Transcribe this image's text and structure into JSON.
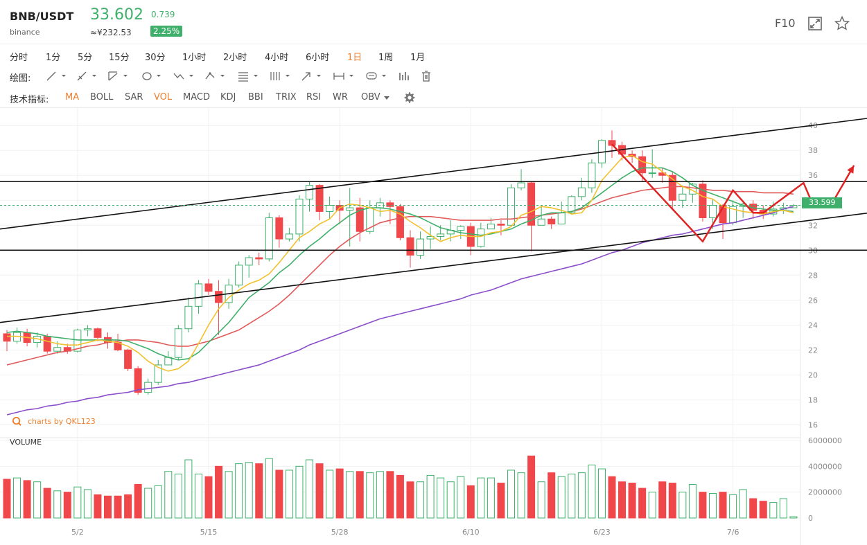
{
  "header": {
    "pair": "BNB/USDT",
    "exchange": "binance",
    "price": "33.602",
    "cny_price": "≈¥232.53",
    "change": "0.739",
    "change_pct": "2.25%",
    "f10_label": "F10",
    "icons": [
      "expand-icon",
      "star-icon"
    ]
  },
  "periods": {
    "items": [
      "分时",
      "1分",
      "5分",
      "15分",
      "30分",
      "1小时",
      "2小时",
      "4小时",
      "6小时",
      "1日",
      "1周",
      "1月"
    ],
    "active": "1日"
  },
  "drawing": {
    "label": "绘图:",
    "tools": [
      "line-tool-icon",
      "ray-tool-icon",
      "channel-tool-icon",
      "shape-tool-icon",
      "pattern-tool-icon",
      "fibonacci-tool-icon",
      "gann-tool-icon",
      "arrow-tool-icon",
      "measure-tool-icon",
      "text-tool-icon",
      "bars-pattern-icon",
      "trash-icon"
    ]
  },
  "indicators": {
    "label": "技术指标:",
    "items": [
      "MA",
      "BOLL",
      "SAR",
      "VOL",
      "MACD",
      "KDJ",
      "BBI",
      "TRIX",
      "RSI",
      "WR",
      "OBV"
    ],
    "active": [
      "MA",
      "VOL"
    ]
  },
  "watermark": "charts by QKL123",
  "volume_label": "VOLUME",
  "last_price_tag": "33.599",
  "colors": {
    "up": "#3fb06b",
    "down": "#f0474b",
    "ma5": "#f2c12e",
    "ma10": "#3fb06b",
    "ma20": "#e05a5a",
    "ma60": "#8a4ecb",
    "accent": "#f07f2d"
  },
  "chart_data": {
    "type": "candlestick",
    "price_axis": {
      "ylim": [
        15.3,
        41.4
      ],
      "ticks": [
        40,
        38,
        36,
        34,
        32,
        30,
        28,
        26,
        24,
        22,
        20,
        18,
        16
      ]
    },
    "volume_axis": {
      "ylim": [
        0,
        6000000
      ],
      "ticks": [
        "6000000",
        "4000000",
        "2000000",
        "0"
      ]
    },
    "x_labels": [
      "5/2",
      "5/15",
      "5/28",
      "6/10",
      "6/23",
      "7/6"
    ],
    "candles": [
      [
        23.3,
        22.7,
        23.6,
        21.9
      ],
      [
        22.7,
        23.4,
        23.8,
        22.5
      ],
      [
        23.4,
        22.6,
        23.7,
        22.3
      ],
      [
        22.6,
        23.1,
        23.4,
        22.2
      ],
      [
        23.1,
        21.9,
        23.3,
        21.7
      ],
      [
        21.9,
        22.2,
        22.7,
        21.7
      ],
      [
        22.2,
        21.9,
        22.5,
        21.7
      ],
      [
        21.9,
        23.6,
        23.7,
        21.8
      ],
      [
        23.6,
        23.7,
        24.0,
        23.1
      ],
      [
        23.7,
        23.0,
        23.8,
        22.7
      ],
      [
        23.0,
        22.6,
        23.4,
        22.1
      ],
      [
        22.6,
        22.0,
        23.3,
        21.9
      ],
      [
        22.0,
        20.5,
        22.1,
        20.3
      ],
      [
        20.5,
        18.6,
        20.7,
        18.4
      ],
      [
        18.6,
        19.4,
        19.7,
        18.4
      ],
      [
        19.4,
        20.8,
        21.2,
        19.2
      ],
      [
        20.8,
        21.4,
        21.9,
        20.8
      ],
      [
        21.4,
        23.7,
        24.0,
        21.2
      ],
      [
        23.7,
        25.5,
        26.2,
        23.4
      ],
      [
        25.5,
        27.3,
        27.6,
        24.9
      ],
      [
        27.3,
        26.7,
        27.7,
        26.4
      ],
      [
        26.7,
        25.8,
        27.6,
        23.2
      ],
      [
        25.8,
        27.2,
        27.7,
        25.3
      ],
      [
        27.2,
        28.8,
        29.1,
        27.0
      ],
      [
        28.8,
        29.4,
        29.6,
        27.8
      ],
      [
        29.4,
        29.3,
        29.8,
        28.8
      ],
      [
        29.3,
        32.6,
        33.0,
        29.1
      ],
      [
        32.6,
        30.9,
        32.8,
        30.2
      ],
      [
        30.9,
        31.3,
        31.8,
        30.7
      ],
      [
        31.3,
        34.1,
        34.4,
        30.7
      ],
      [
        34.1,
        35.2,
        35.5,
        33.1
      ],
      [
        35.2,
        33.1,
        35.3,
        32.4
      ],
      [
        33.1,
        33.6,
        34.3,
        32.5
      ],
      [
        33.6,
        33.2,
        34.0,
        32.1
      ],
      [
        33.2,
        33.4,
        35.0,
        30.3
      ],
      [
        33.4,
        31.5,
        34.2,
        30.7
      ],
      [
        31.5,
        33.4,
        34.0,
        31.3
      ],
      [
        33.4,
        33.8,
        34.2,
        32.7
      ],
      [
        33.8,
        33.5,
        34.0,
        32.1
      ],
      [
        33.5,
        31.0,
        33.7,
        30.8
      ],
      [
        31.0,
        29.6,
        31.6,
        28.6
      ],
      [
        29.6,
        30.9,
        31.5,
        29.3
      ],
      [
        30.9,
        31.1,
        31.9,
        30.1
      ],
      [
        31.1,
        31.3,
        32.0,
        30.8
      ],
      [
        31.3,
        31.6,
        32.4,
        30.7
      ],
      [
        31.6,
        31.9,
        32.0,
        30.9
      ],
      [
        31.9,
        30.3,
        32.2,
        29.6
      ],
      [
        30.3,
        31.7,
        32.2,
        30.2
      ],
      [
        31.7,
        32.1,
        32.6,
        31.8
      ],
      [
        32.1,
        32.0,
        32.4,
        31.2
      ],
      [
        32.0,
        35.0,
        35.3,
        31.9
      ],
      [
        35.0,
        35.4,
        36.5,
        34.8
      ],
      [
        35.4,
        32.0,
        35.5,
        29.9
      ],
      [
        32.0,
        32.5,
        33.6,
        32.1
      ],
      [
        32.5,
        32.1,
        32.7,
        31.7
      ],
      [
        32.1,
        33.0,
        33.9,
        32.4
      ],
      [
        33.0,
        34.3,
        34.4,
        32.9
      ],
      [
        34.3,
        35.0,
        35.8,
        34.0
      ],
      [
        35.0,
        37.0,
        37.3,
        34.6
      ],
      [
        37.0,
        38.8,
        38.9,
        36.6
      ],
      [
        38.8,
        38.4,
        39.6,
        37.4
      ],
      [
        38.4,
        37.7,
        38.7,
        37.2
      ],
      [
        37.7,
        37.5,
        38.0,
        37.0
      ],
      [
        37.5,
        36.2,
        38.0,
        35.5
      ],
      [
        36.2,
        36.2,
        38.1,
        35.8
      ],
      [
        36.2,
        36.0,
        36.6,
        35.4
      ],
      [
        36.0,
        34.0,
        36.3,
        33.2
      ],
      [
        34.0,
        34.5,
        35.2,
        33.4
      ],
      [
        34.5,
        35.3,
        35.4,
        33.8
      ],
      [
        35.3,
        32.6,
        35.6,
        32.3
      ],
      [
        32.6,
        33.6,
        34.1,
        31.7
      ],
      [
        33.6,
        32.2,
        33.7,
        30.9
      ],
      [
        32.2,
        33.5,
        34.0,
        32.0
      ],
      [
        33.5,
        33.7,
        33.9,
        32.6
      ],
      [
        33.7,
        33.2,
        34.0,
        32.5
      ],
      [
        33.2,
        32.9,
        33.6,
        32.5
      ],
      [
        32.9,
        33.3,
        33.9,
        32.7
      ],
      [
        33.3,
        33.4,
        33.8,
        32.9
      ],
      [
        33.4,
        33.6,
        33.7,
        33.4
      ]
    ],
    "volumes": [
      3.0,
      3.1,
      2.9,
      2.8,
      2.3,
      2.1,
      2.0,
      2.4,
      2.2,
      1.8,
      1.7,
      1.7,
      1.8,
      2.6,
      2.3,
      2.5,
      3.6,
      3.4,
      4.5,
      3.4,
      3.2,
      4.0,
      3.6,
      4.2,
      4.3,
      4.2,
      4.6,
      3.7,
      3.7,
      4.0,
      4.5,
      4.2,
      3.7,
      3.8,
      3.6,
      3.6,
      3.5,
      3.6,
      3.6,
      3.3,
      2.8,
      2.8,
      3.3,
      3.1,
      2.8,
      3.2,
      2.5,
      3.1,
      3.1,
      2.7,
      3.7,
      3.5,
      4.8,
      2.8,
      3.5,
      3.2,
      3.4,
      3.5,
      4.1,
      3.8,
      3.2,
      2.8,
      2.7,
      2.3,
      2.0,
      2.8,
      2.7,
      2.0,
      2.6,
      2.0,
      1.9,
      2.0,
      1.8,
      2.2,
      1.5,
      1.3,
      1.2,
      1.5,
      0.1
    ],
    "volume_scale": 1000000,
    "ma5": [
      23.1,
      23.1,
      23.0,
      22.9,
      22.7,
      22.5,
      22.4,
      22.4,
      22.6,
      22.8,
      22.7,
      22.6,
      22.3,
      21.8,
      21.1,
      20.6,
      20.3,
      20.5,
      21.1,
      22.5,
      24.0,
      25.3,
      26.2,
      26.8,
      27.3,
      27.6,
      28.1,
      29.0,
      30.0,
      31.0,
      31.5,
      32.1,
      32.5,
      33.4,
      33.7,
      33.6,
      33.4,
      33.1,
      33.2,
      32.9,
      32.3,
      31.8,
      31.2,
      30.7,
      31.0,
      31.2,
      31.1,
      31.1,
      31.4,
      31.5,
      31.9,
      32.8,
      33.1,
      33.5,
      33.4,
      33.2,
      32.9,
      33.0,
      34.0,
      35.6,
      36.5,
      37.4,
      37.6,
      37.1,
      36.9,
      36.3,
      35.7,
      35.1,
      34.8,
      34.3,
      34.1,
      33.5,
      33.3,
      33.1,
      33.0,
      32.9,
      33.1,
      33.2,
      33.0
    ],
    "ma10": [
      23.4,
      23.5,
      23.4,
      23.3,
      23.1,
      23.0,
      22.9,
      22.8,
      22.8,
      22.8,
      22.8,
      22.8,
      22.7,
      22.4,
      22.1,
      21.7,
      21.4,
      21.2,
      21.3,
      21.8,
      22.6,
      23.4,
      24.2,
      25.2,
      26.2,
      26.8,
      27.4,
      28.2,
      28.8,
      29.6,
      30.3,
      30.9,
      31.6,
      32.2,
      32.8,
      33.2,
      33.4,
      33.4,
      33.3,
      33.1,
      32.9,
      32.6,
      32.2,
      31.8,
      31.6,
      31.4,
      31.3,
      31.2,
      31.3,
      31.5,
      31.7,
      32.1,
      32.4,
      32.8,
      33.0,
      33.0,
      33.1,
      33.4,
      34.0,
      34.6,
      35.2,
      35.8,
      36.3,
      36.6,
      36.6,
      36.6,
      36.3,
      35.8,
      35.2,
      34.8,
      34.5,
      34.2,
      33.9,
      33.6,
      33.4,
      33.3,
      33.2,
      33.2,
      33.1
    ],
    "ma20": [
      20.8,
      21.0,
      21.2,
      21.4,
      21.6,
      21.8,
      21.9,
      22.1,
      22.3,
      22.4,
      22.6,
      22.7,
      22.8,
      22.8,
      22.7,
      22.6,
      22.4,
      22.3,
      22.3,
      22.5,
      22.7,
      23.0,
      23.3,
      23.6,
      24.1,
      24.6,
      25.1,
      25.7,
      26.4,
      27.2,
      28.0,
      28.8,
      29.6,
      30.3,
      30.9,
      31.4,
      31.8,
      32.2,
      32.4,
      32.6,
      32.7,
      32.7,
      32.7,
      32.6,
      32.5,
      32.4,
      32.4,
      32.4,
      32.4,
      32.5,
      32.5,
      32.6,
      32.7,
      32.8,
      32.9,
      33.0,
      33.1,
      33.3,
      33.6,
      33.9,
      34.2,
      34.4,
      34.6,
      34.8,
      34.9,
      35.0,
      35.1,
      35.1,
      35.0,
      34.9,
      34.8,
      34.8,
      34.7,
      34.7,
      34.7,
      34.6,
      34.6,
      34.6,
      34.5
    ],
    "ma60": [
      16.8,
      17.0,
      17.2,
      17.3,
      17.5,
      17.6,
      17.8,
      17.9,
      18.1,
      18.2,
      18.4,
      18.5,
      18.6,
      18.8,
      18.9,
      19.0,
      19.1,
      19.3,
      19.4,
      19.6,
      19.8,
      20.0,
      20.2,
      20.4,
      20.6,
      20.8,
      21.1,
      21.4,
      21.7,
      22.0,
      22.4,
      22.7,
      23.0,
      23.3,
      23.6,
      23.9,
      24.2,
      24.5,
      24.7,
      24.9,
      25.1,
      25.3,
      25.5,
      25.7,
      25.9,
      26.1,
      26.4,
      26.6,
      26.8,
      27.1,
      27.4,
      27.7,
      27.9,
      28.1,
      28.3,
      28.5,
      28.7,
      28.9,
      29.2,
      29.5,
      29.8,
      30.0,
      30.3,
      30.6,
      30.8,
      31.0,
      31.2,
      31.3,
      31.5,
      31.7,
      31.9,
      32.1,
      32.2,
      32.4,
      32.6,
      32.8,
      33.0,
      33.3,
      33.5
    ],
    "trend_lines": [
      {
        "name": "channel-upper-line",
        "from": [
          0,
          31.7
        ],
        "to": [
          87,
          40.8
        ]
      },
      {
        "name": "channel-lower-line",
        "from": [
          0,
          24.2
        ],
        "to": [
          87,
          33.2
        ]
      },
      {
        "name": "resistance-line",
        "from": [
          0,
          35.5
        ],
        "to": [
          87,
          35.5
        ]
      },
      {
        "name": "support-line",
        "from": [
          0,
          30.0
        ],
        "to": [
          87,
          30.0
        ]
      }
    ],
    "last_price": 33.599,
    "forecast_path": [
      [
        60,
        38.5
      ],
      [
        69,
        30.7
      ],
      [
        72,
        34.8
      ],
      [
        74,
        33.0
      ],
      [
        75,
        33.0
      ],
      [
        79,
        35.4
      ],
      [
        80,
        33.5
      ],
      [
        82,
        34.0
      ],
      [
        84,
        36.8
      ]
    ]
  }
}
